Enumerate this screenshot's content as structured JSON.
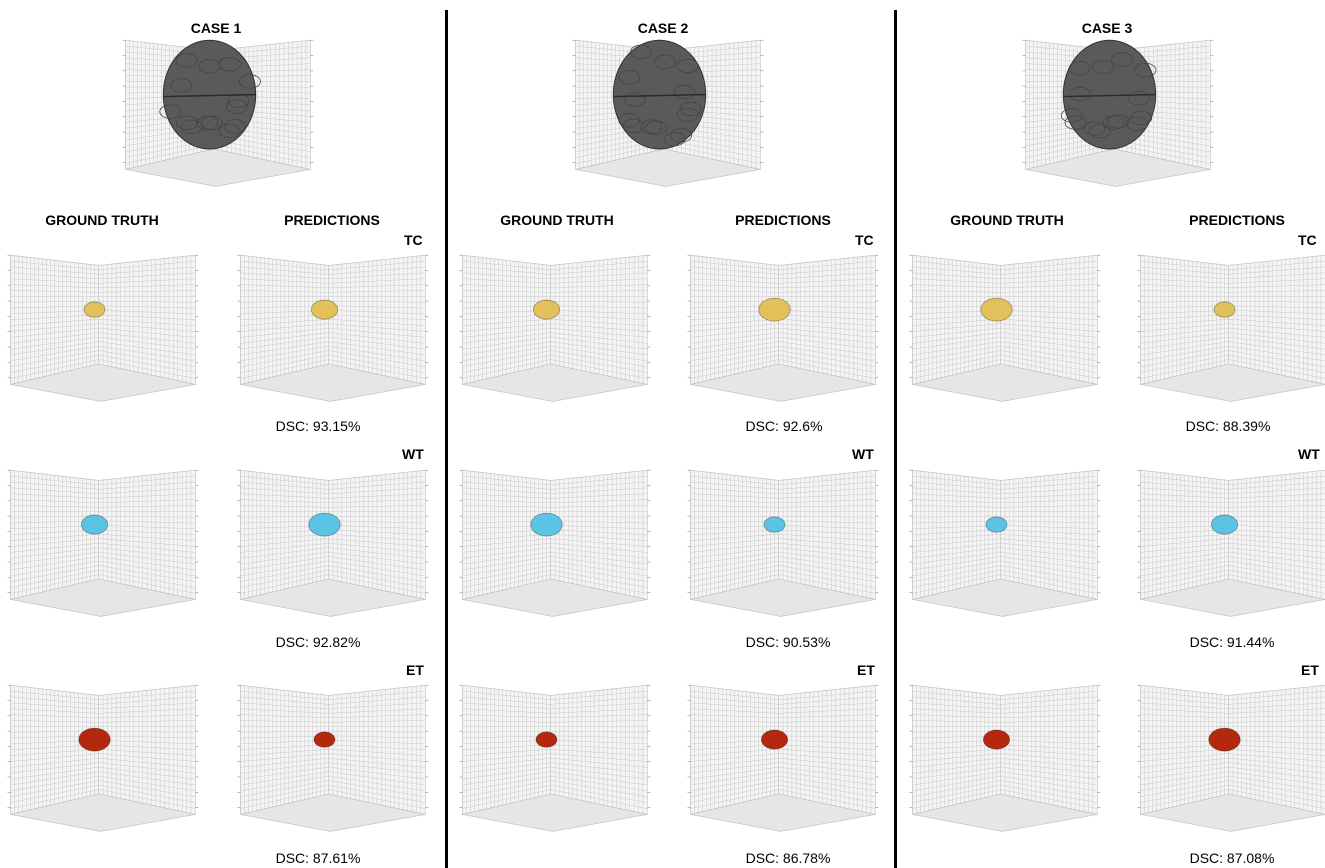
{
  "cases": [
    {
      "title": "CASE 1",
      "ground_truth_label": "GROUND TRUTH",
      "predictions_label": "PREDICTIONS",
      "regions": [
        {
          "name": "TC",
          "dsc": "DSC: 93.15%"
        },
        {
          "name": "WT",
          "dsc": "DSC: 92.82%"
        },
        {
          "name": "ET",
          "dsc": "DSC: 87.61%"
        }
      ]
    },
    {
      "title": "CASE 2",
      "ground_truth_label": "GROUND TRUTH",
      "predictions_label": "PREDICTIONS",
      "regions": [
        {
          "name": "TC",
          "dsc": "DSC: 92.6%"
        },
        {
          "name": "WT",
          "dsc": "DSC: 90.53%"
        },
        {
          "name": "ET",
          "dsc": "DSC: 86.78%"
        }
      ]
    },
    {
      "title": "CASE 3",
      "ground_truth_label": "GROUND TRUTH",
      "predictions_label": "PREDICTIONS",
      "regions": [
        {
          "name": "TC",
          "dsc": "DSC: 88.39%"
        },
        {
          "name": "WT",
          "dsc": "DSC: 91.44%"
        },
        {
          "name": "ET",
          "dsc": "DSC: 87.08%"
        }
      ]
    }
  ],
  "colors": {
    "brain": "#5a5a5a",
    "tc": "#e3c15a",
    "wt": "#5bc3e3",
    "et": "#b5280f",
    "grid": "#c8c8c8",
    "divider": "#000000"
  }
}
